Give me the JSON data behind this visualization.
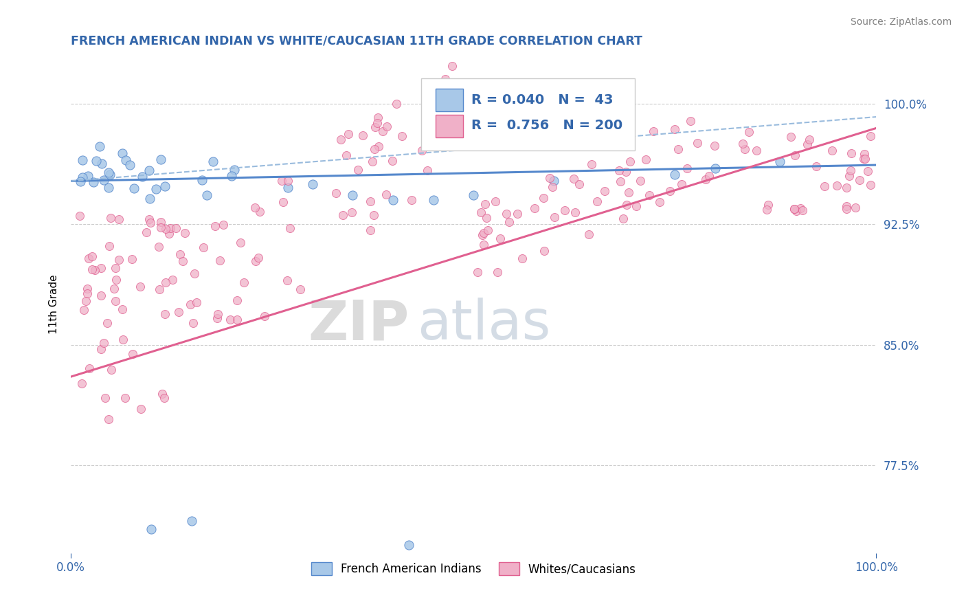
{
  "title": "FRENCH AMERICAN INDIAN VS WHITE/CAUCASIAN 11TH GRADE CORRELATION CHART",
  "source_text": "Source: ZipAtlas.com",
  "ylabel": "11th Grade",
  "watermark_zip": "ZIP",
  "watermark_atlas": "atlas",
  "xmin": 0.0,
  "xmax": 1.0,
  "ymin": 0.72,
  "ymax": 1.03,
  "yticks": [
    0.775,
    0.85,
    0.925,
    1.0
  ],
  "ytick_labels": [
    "77.5%",
    "85.0%",
    "92.5%",
    "100.0%"
  ],
  "xtick_labels": [
    "0.0%",
    "100.0%"
  ],
  "xticks": [
    0.0,
    1.0
  ],
  "legend_R1": "0.040",
  "legend_N1": "43",
  "legend_R2": "0.756",
  "legend_N2": "200",
  "blue_fill": "#a8c8e8",
  "blue_edge": "#5588cc",
  "pink_fill": "#f0b0c8",
  "pink_edge": "#e06090",
  "blue_line_color": "#5588cc",
  "pink_line_color": "#e06090",
  "dashed_line_color": "#99bbdd",
  "title_color": "#3366aa",
  "axis_color": "#3366aa",
  "grid_color": "#cccccc"
}
